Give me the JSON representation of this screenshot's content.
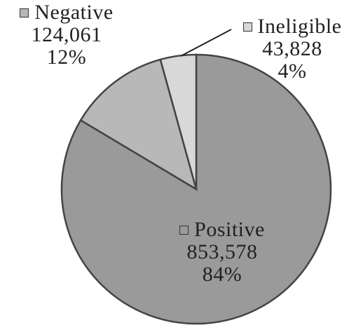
{
  "chart_data": {
    "type": "pie",
    "slices": [
      {
        "label": "Positive",
        "value": 853578,
        "value_label": "853,578",
        "percent_label": "84%",
        "color": "#9a9a9a"
      },
      {
        "label": "Negative",
        "value": 124061,
        "value_label": "124,061",
        "percent_label": "12%",
        "color": "#b8b8b8"
      },
      {
        "label": "Ineligible",
        "value": 43828,
        "value_label": "43,828",
        "percent_label": "4%",
        "color": "#d8d8d8"
      }
    ],
    "legend": "inline",
    "colors": {
      "outline": "#444444",
      "text": "#222222"
    }
  }
}
